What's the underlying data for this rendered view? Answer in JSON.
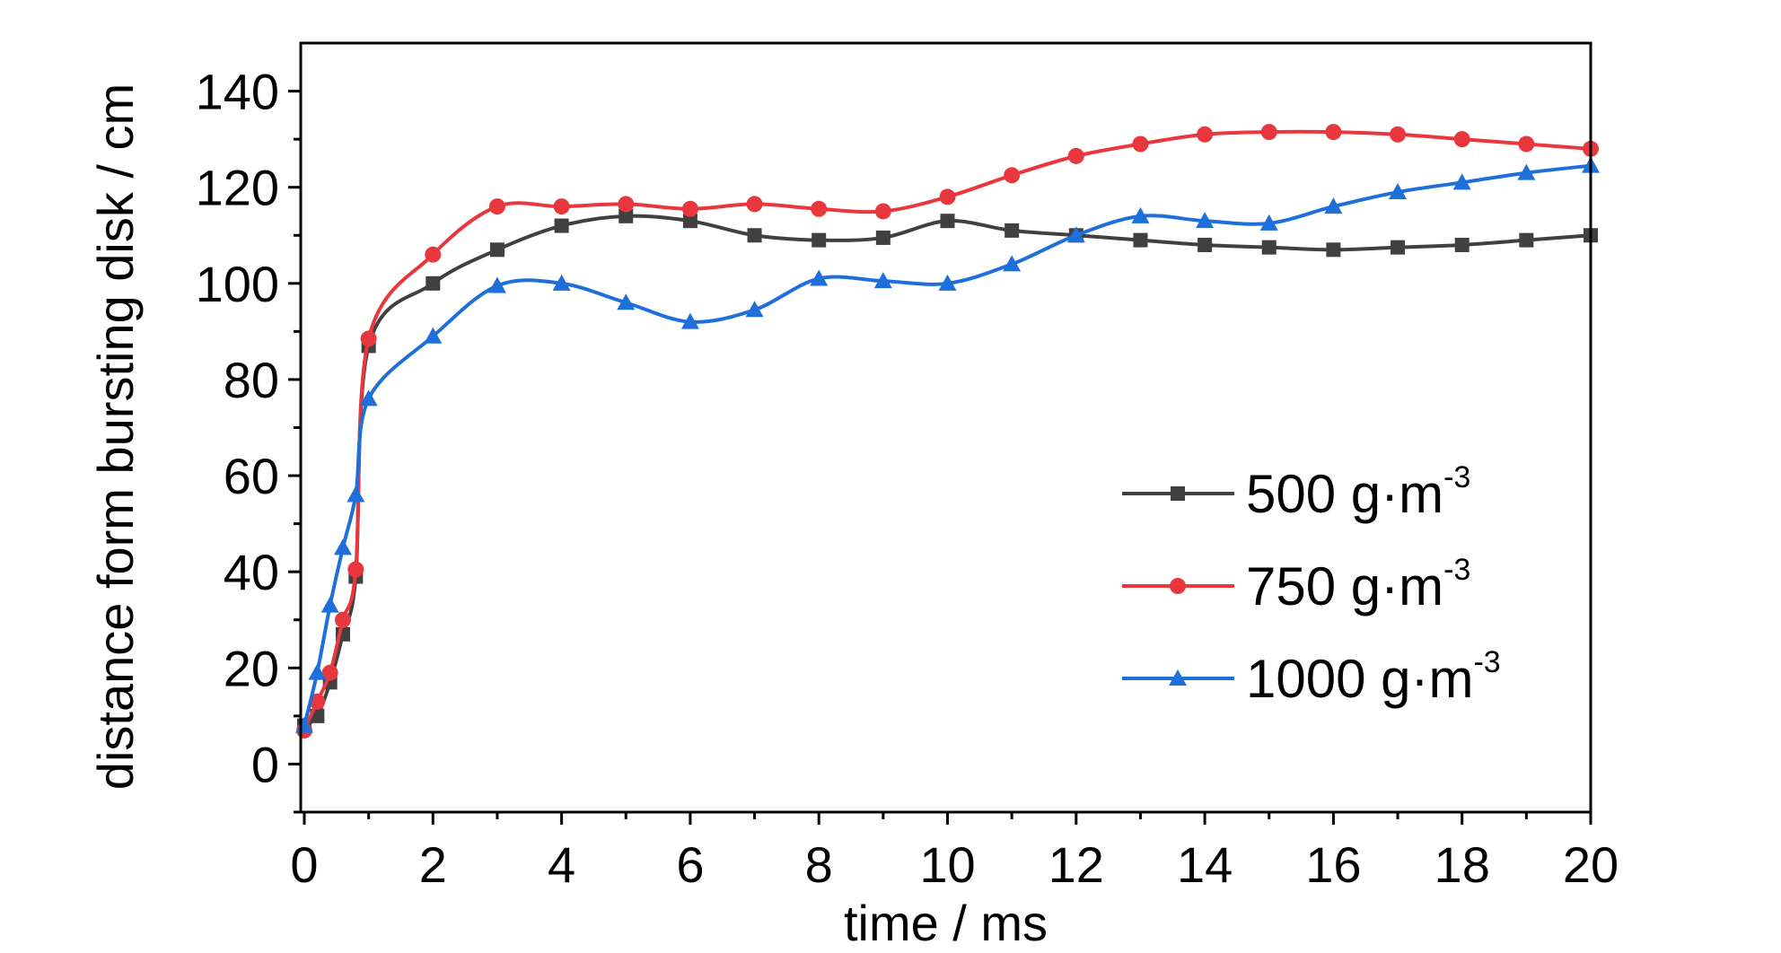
{
  "chart_data": {
    "type": "line",
    "title": "",
    "xlabel": "time / ms",
    "ylabel": "distance form bursting disk / cm",
    "xlim": [
      0,
      20
    ],
    "ylim": [
      -10,
      150
    ],
    "xticks": [
      "0",
      "2",
      "4",
      "6",
      "8",
      "10",
      "12",
      "14",
      "16",
      "18",
      "20"
    ],
    "yticks": [
      "0",
      "20",
      "40",
      "60",
      "80",
      "100",
      "120",
      "140"
    ],
    "grid": false,
    "legend_position": "right",
    "series": [
      {
        "name": "500 g·m",
        "name_sup": "-3",
        "color": "#404040",
        "marker": "square",
        "x": [
          0,
          0.2,
          0.4,
          0.6,
          0.8,
          1,
          2,
          3,
          4,
          5,
          6,
          7,
          8,
          9,
          10,
          11,
          12,
          13,
          14,
          15,
          16,
          17,
          18,
          19,
          20
        ],
        "y": [
          8,
          10,
          17,
          27,
          39,
          87,
          100,
          107,
          112,
          114,
          113,
          110,
          109,
          109.5,
          113,
          111,
          110,
          109,
          108,
          107.5,
          107,
          107.5,
          108,
          109,
          110
        ]
      },
      {
        "name": "750 g·m",
        "name_sup": "-3",
        "color": "#e8373d",
        "marker": "circle",
        "x": [
          0,
          0.2,
          0.4,
          0.6,
          0.8,
          1,
          2,
          3,
          4,
          5,
          6,
          7,
          8,
          9,
          10,
          11,
          12,
          13,
          14,
          15,
          16,
          17,
          18,
          19,
          20
        ],
        "y": [
          7,
          13,
          19,
          30,
          40.5,
          88.5,
          106,
          116,
          116,
          116.5,
          115.5,
          116.5,
          115.5,
          115,
          118,
          122.5,
          126.5,
          129,
          131,
          131.5,
          131.5,
          131,
          130,
          129,
          128
        ]
      },
      {
        "name": "1000 g·m",
        "name_sup": "-3",
        "color": "#1e6fd9",
        "marker": "triangle",
        "x": [
          0,
          0.2,
          0.4,
          0.6,
          0.8,
          1,
          2,
          3,
          4,
          5,
          6,
          7,
          8,
          9,
          10,
          11,
          12,
          13,
          14,
          15,
          16,
          17,
          18,
          19,
          20
        ],
        "y": [
          8,
          19,
          33,
          45,
          56,
          76,
          89,
          99.5,
          100,
          96,
          92,
          94.5,
          101,
          100.5,
          100,
          104,
          110,
          114,
          113,
          112.5,
          116,
          119,
          121,
          123,
          124.5
        ]
      }
    ]
  }
}
